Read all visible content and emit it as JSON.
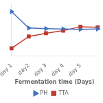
{
  "chart_data": {
    "type": "line",
    "categories": [
      "day 1",
      "day2",
      "day 3",
      "day 4",
      "day 5",
      null
    ],
    "series": [
      {
        "name": "PH",
        "color": "#4472c4",
        "marker": "triangle-right",
        "values": [
          6.8,
          4.3,
          4.2,
          4.15,
          4.1,
          4.15
        ],
        "errors": [
          0.0,
          0.15,
          0.12,
          0.12,
          0.1,
          0.12
        ]
      },
      {
        "name": "TTA",
        "color": "#c0392b",
        "marker": "square",
        "values": [
          1.2,
          3.0,
          3.5,
          3.9,
          4.5,
          4.4
        ],
        "errors": [
          0.0,
          0.1,
          0.1,
          0.15,
          0.2,
          0.2
        ]
      }
    ],
    "x_label": "Fermentation time (Days)",
    "ylim": [
      0,
      8
    ],
    "tick_labels": "x",
    "grid": false,
    "legend": "bottom"
  }
}
